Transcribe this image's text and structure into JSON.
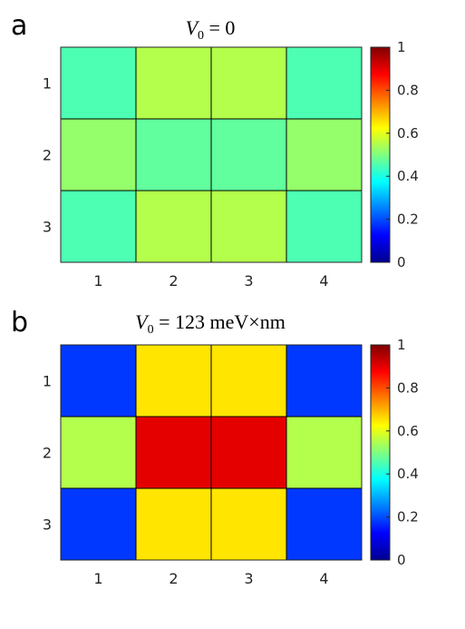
{
  "chart_data": [
    {
      "type": "heatmap",
      "panel": "a",
      "title": "V0 = 0",
      "title_parts": {
        "var": "V",
        "sub": "0",
        "rest": " = 0"
      },
      "x": [
        "1",
        "2",
        "3",
        "4"
      ],
      "y": [
        "1",
        "2",
        "3"
      ],
      "values": [
        [
          0.45,
          0.55,
          0.55,
          0.45
        ],
        [
          0.52,
          0.47,
          0.47,
          0.52
        ],
        [
          0.45,
          0.55,
          0.55,
          0.45
        ]
      ],
      "colorbar": {
        "min": 0,
        "max": 1,
        "ticks": [
          "0",
          "0.2",
          "0.4",
          "0.6",
          "0.8",
          "1"
        ],
        "colormap": "jet"
      },
      "grid": true
    },
    {
      "type": "heatmap",
      "panel": "b",
      "title": "V0 = 123 meV×nm",
      "title_parts": {
        "var": "V",
        "sub": "0",
        "rest": " = 123 meV×nm"
      },
      "x": [
        "1",
        "2",
        "3",
        "4"
      ],
      "y": [
        "1",
        "2",
        "3"
      ],
      "values": [
        [
          0.18,
          0.65,
          0.65,
          0.18
        ],
        [
          0.55,
          0.9,
          0.9,
          0.55
        ],
        [
          0.18,
          0.65,
          0.65,
          0.18
        ]
      ],
      "colorbar": {
        "min": 0,
        "max": 1,
        "ticks": [
          "0",
          "0.2",
          "0.4",
          "0.6",
          "0.8",
          "1"
        ],
        "colormap": "jet"
      },
      "grid": true
    }
  ]
}
